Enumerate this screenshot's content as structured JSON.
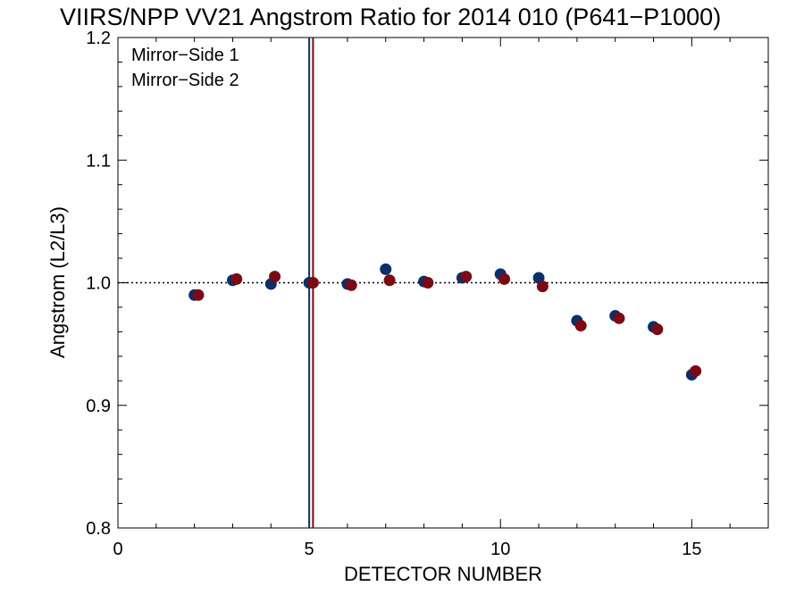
{
  "chart_data": {
    "type": "scatter",
    "title": "VIIRS/NPP VV21 Angstrom Ratio for 2014 010 (P641−P1000)",
    "xlabel": "DETECTOR NUMBER",
    "ylabel": "Angstrom (L2/L3)",
    "xlim": [
      0,
      17
    ],
    "ylim": [
      0.8,
      1.2
    ],
    "x_ticks": [
      0,
      5,
      10,
      15
    ],
    "x_tick_labels": [
      "0",
      "5",
      "10",
      "15"
    ],
    "y_ticks": [
      0.8,
      0.9,
      1.0,
      1.1,
      1.2
    ],
    "y_tick_labels": [
      "0.8",
      "0.9",
      "1.0",
      "1.1",
      "1.2"
    ],
    "reference_line_y": 1.0,
    "legend_position": "top-left",
    "series": [
      {
        "name": "Mirror−Side 1",
        "color": "#0a2f6b",
        "x": [
          2,
          3,
          4,
          5,
          6,
          7,
          8,
          9,
          10,
          11,
          12,
          13,
          14,
          15
        ],
        "y": [
          0.99,
          1.002,
          0.999,
          1.0,
          0.999,
          1.011,
          1.001,
          1.004,
          1.007,
          1.004,
          0.969,
          0.973,
          0.964,
          0.925
        ],
        "vline_x": 5.0
      },
      {
        "name": "Mirror−Side 2",
        "color": "#7a0a14",
        "x": [
          2.1,
          3.1,
          4.1,
          5.1,
          6.1,
          7.1,
          8.1,
          9.1,
          10.1,
          11.1,
          12.1,
          13.1,
          14.1,
          15.1
        ],
        "y": [
          0.99,
          1.003,
          1.005,
          1.0,
          0.998,
          1.002,
          1.0,
          1.005,
          1.003,
          0.997,
          0.965,
          0.971,
          0.962,
          0.928
        ],
        "vline_x": 5.1
      }
    ],
    "grid": false
  }
}
